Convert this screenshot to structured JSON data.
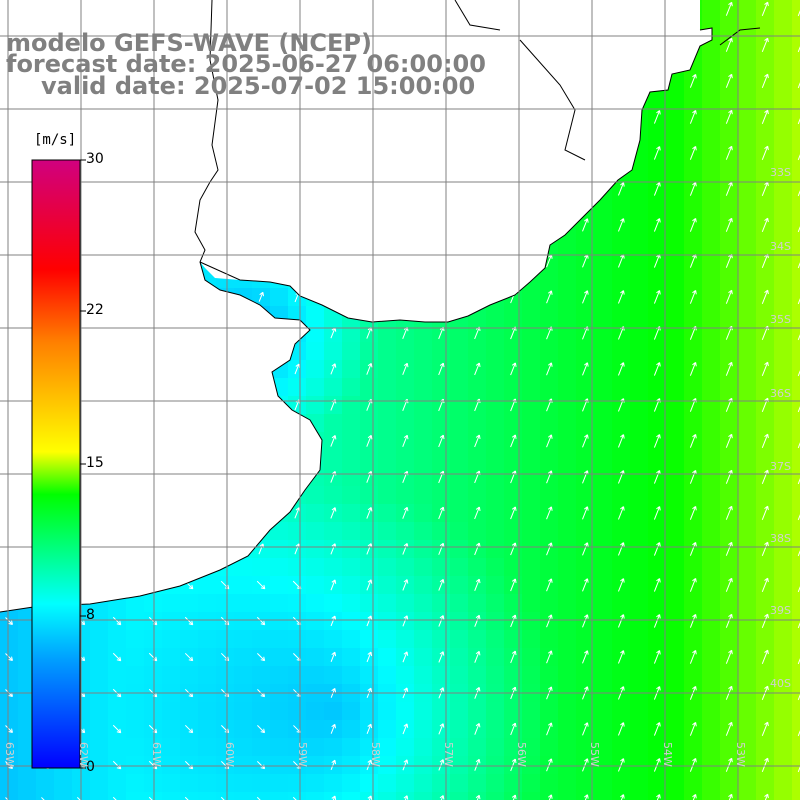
{
  "title": {
    "line1": "modelo GEFS-WAVE (NCEP)",
    "line2": "forecast date: 2025-06-27 06:00:00",
    "line3": "valid date: 2025-07-02 15:00:00"
  },
  "colorbar": {
    "unit": "[m/s]",
    "ticks": [
      "30",
      "22",
      "15",
      "8",
      "0"
    ],
    "range": [
      0,
      30
    ],
    "colors": [
      "#0000ff",
      "#00a0ff",
      "#00ffff",
      "#00ff00",
      "#ffff00",
      "#ff8000",
      "#ff0000",
      "#d0007f"
    ]
  },
  "latitude_labels": [
    "33S",
    "34S",
    "35S",
    "36S",
    "37S",
    "38S",
    "39S",
    "40S"
  ],
  "longitude_labels": [
    "63W",
    "62W",
    "61W",
    "60W",
    "59W",
    "58W",
    "57W",
    "56W",
    "55W",
    "54W",
    "53W"
  ],
  "colors": {
    "land": "#ffffff",
    "coast": "#000000",
    "grid": "#808080",
    "arrow": "#ffffff"
  }
}
